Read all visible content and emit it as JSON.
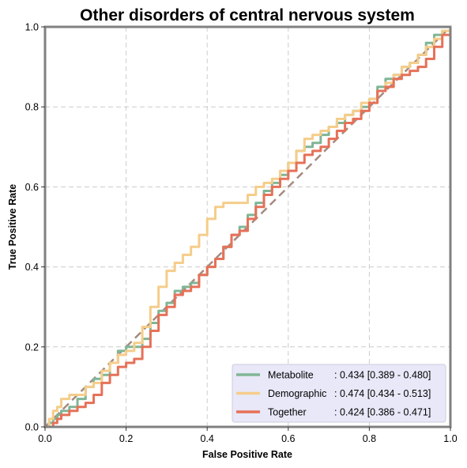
{
  "chart_data": {
    "type": "line",
    "title": "Other disorders of central nervous system",
    "xlabel": "False Positive Rate",
    "ylabel": "True Positive Rate",
    "xlim": [
      0,
      1
    ],
    "ylim": [
      0,
      1
    ],
    "xticks": [
      "0.0",
      "0.2",
      "0.4",
      "0.6",
      "0.8",
      "1.0"
    ],
    "yticks": [
      "0.0",
      "0.2",
      "0.4",
      "0.6",
      "0.8",
      "1.0"
    ],
    "grid": true,
    "legend_position": "lower-right",
    "diagonal": {
      "x": [
        0,
        1
      ],
      "y": [
        0,
        1
      ],
      "color": "#a58a80",
      "style": "dashed"
    },
    "series": [
      {
        "name": "Metabolite",
        "stat": ": 0.434 [0.389 - 0.480]",
        "color": "#80b595",
        "x": [
          0,
          0.01,
          0.02,
          0.03,
          0.04,
          0.06,
          0.08,
          0.1,
          0.12,
          0.14,
          0.16,
          0.18,
          0.2,
          0.22,
          0.24,
          0.26,
          0.28,
          0.3,
          0.32,
          0.34,
          0.36,
          0.38,
          0.4,
          0.42,
          0.44,
          0.46,
          0.48,
          0.5,
          0.52,
          0.54,
          0.56,
          0.58,
          0.6,
          0.62,
          0.64,
          0.66,
          0.68,
          0.7,
          0.72,
          0.74,
          0.76,
          0.78,
          0.8,
          0.82,
          0.84,
          0.86,
          0.88,
          0.9,
          0.92,
          0.94,
          0.96,
          0.98,
          1.0
        ],
        "y": [
          0,
          0.01,
          0.02,
          0.03,
          0.04,
          0.05,
          0.07,
          0.1,
          0.12,
          0.13,
          0.16,
          0.19,
          0.2,
          0.2,
          0.22,
          0.26,
          0.29,
          0.31,
          0.34,
          0.35,
          0.36,
          0.38,
          0.4,
          0.42,
          0.45,
          0.48,
          0.5,
          0.53,
          0.56,
          0.59,
          0.61,
          0.63,
          0.66,
          0.69,
          0.7,
          0.71,
          0.73,
          0.75,
          0.76,
          0.78,
          0.79,
          0.8,
          0.82,
          0.85,
          0.87,
          0.88,
          0.9,
          0.91,
          0.93,
          0.96,
          0.98,
          0.99,
          1.0
        ]
      },
      {
        "name": "Demographic",
        "stat": ": 0.474 [0.434 - 0.513]",
        "color": "#f5cd8a",
        "x": [
          0,
          0.01,
          0.02,
          0.03,
          0.04,
          0.06,
          0.08,
          0.1,
          0.12,
          0.14,
          0.16,
          0.18,
          0.2,
          0.22,
          0.24,
          0.26,
          0.28,
          0.3,
          0.32,
          0.34,
          0.36,
          0.38,
          0.4,
          0.42,
          0.44,
          0.46,
          0.48,
          0.5,
          0.52,
          0.54,
          0.56,
          0.58,
          0.6,
          0.62,
          0.64,
          0.66,
          0.68,
          0.7,
          0.72,
          0.74,
          0.76,
          0.78,
          0.8,
          0.82,
          0.84,
          0.86,
          0.88,
          0.9,
          0.92,
          0.94,
          0.96,
          0.98,
          1.0
        ],
        "y": [
          0,
          0.02,
          0.04,
          0.05,
          0.07,
          0.08,
          0.08,
          0.1,
          0.11,
          0.14,
          0.16,
          0.18,
          0.19,
          0.21,
          0.25,
          0.3,
          0.35,
          0.39,
          0.41,
          0.43,
          0.45,
          0.48,
          0.52,
          0.55,
          0.56,
          0.56,
          0.56,
          0.58,
          0.6,
          0.61,
          0.62,
          0.64,
          0.66,
          0.69,
          0.72,
          0.73,
          0.74,
          0.75,
          0.77,
          0.78,
          0.79,
          0.81,
          0.82,
          0.84,
          0.86,
          0.88,
          0.9,
          0.91,
          0.93,
          0.95,
          0.97,
          0.99,
          1.0
        ]
      },
      {
        "name": "Together",
        "stat": ": 0.424 [0.386 - 0.471]",
        "color": "#e67158",
        "x": [
          0,
          0.01,
          0.02,
          0.03,
          0.04,
          0.06,
          0.08,
          0.1,
          0.12,
          0.14,
          0.16,
          0.18,
          0.2,
          0.22,
          0.24,
          0.26,
          0.28,
          0.3,
          0.32,
          0.34,
          0.36,
          0.38,
          0.4,
          0.42,
          0.44,
          0.46,
          0.48,
          0.5,
          0.52,
          0.54,
          0.56,
          0.58,
          0.6,
          0.62,
          0.64,
          0.66,
          0.68,
          0.7,
          0.72,
          0.74,
          0.76,
          0.78,
          0.8,
          0.82,
          0.84,
          0.86,
          0.88,
          0.9,
          0.92,
          0.94,
          0.96,
          0.98,
          1.0
        ],
        "y": [
          0,
          0.0,
          0.01,
          0.02,
          0.03,
          0.04,
          0.05,
          0.06,
          0.08,
          0.11,
          0.13,
          0.15,
          0.16,
          0.17,
          0.2,
          0.24,
          0.28,
          0.3,
          0.33,
          0.34,
          0.35,
          0.38,
          0.4,
          0.42,
          0.45,
          0.48,
          0.49,
          0.52,
          0.55,
          0.58,
          0.6,
          0.62,
          0.64,
          0.66,
          0.68,
          0.69,
          0.7,
          0.72,
          0.74,
          0.76,
          0.77,
          0.79,
          0.81,
          0.84,
          0.85,
          0.87,
          0.88,
          0.89,
          0.9,
          0.92,
          0.95,
          0.98,
          1.0
        ]
      }
    ]
  },
  "colors": {
    "frame": "#808080",
    "grid": "#cccccc",
    "legend_bg": "#e8e8f8",
    "legend_border": "#ccccdd"
  }
}
